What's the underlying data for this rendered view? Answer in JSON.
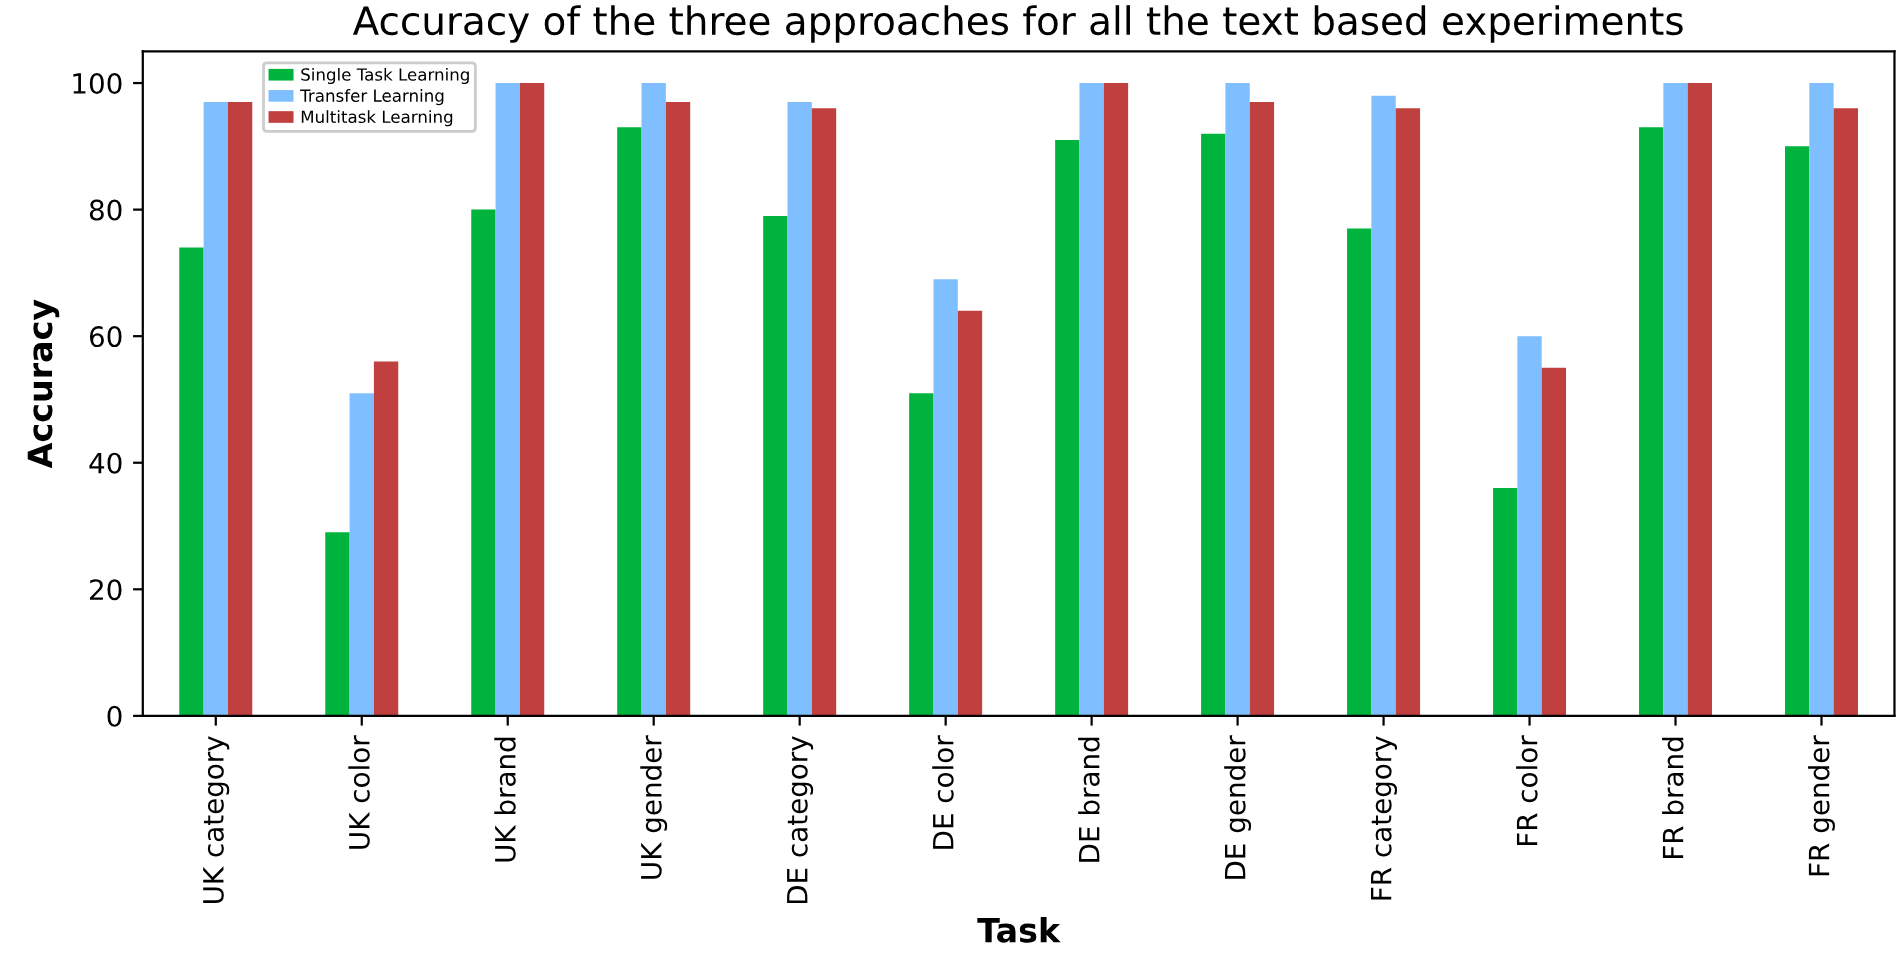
{
  "chart_data": {
    "type": "bar",
    "title": "Accuracy of the three approaches for all the text based experiments",
    "xlabel": "Task",
    "ylabel": "Accuracy",
    "categories": [
      "UK category",
      "UK color",
      "UK brand",
      "UK gender",
      "DE category",
      "DE color",
      "DE brand",
      "DE gender",
      "FR category",
      "FR color",
      "FR brand",
      "FR gender"
    ],
    "series": [
      {
        "name": "Single Task Learning",
        "color": "#00b33c",
        "values": [
          74,
          29,
          80,
          93,
          79,
          51,
          91,
          92,
          77,
          36,
          93,
          90
        ]
      },
      {
        "name": "Transfer Learning",
        "color": "#80bfff",
        "values": [
          97,
          51,
          100,
          100,
          97,
          69,
          100,
          100,
          98,
          60,
          100,
          100
        ]
      },
      {
        "name": "Multitask Learning",
        "color": "#c04040",
        "values": [
          97,
          56,
          100,
          97,
          96,
          64,
          100,
          97,
          96,
          55,
          100,
          96
        ]
      }
    ],
    "ylim": [
      0,
      105
    ],
    "yticks": [
      0,
      20,
      40,
      60,
      80,
      100
    ],
    "grid": false,
    "legend": "top left"
  }
}
